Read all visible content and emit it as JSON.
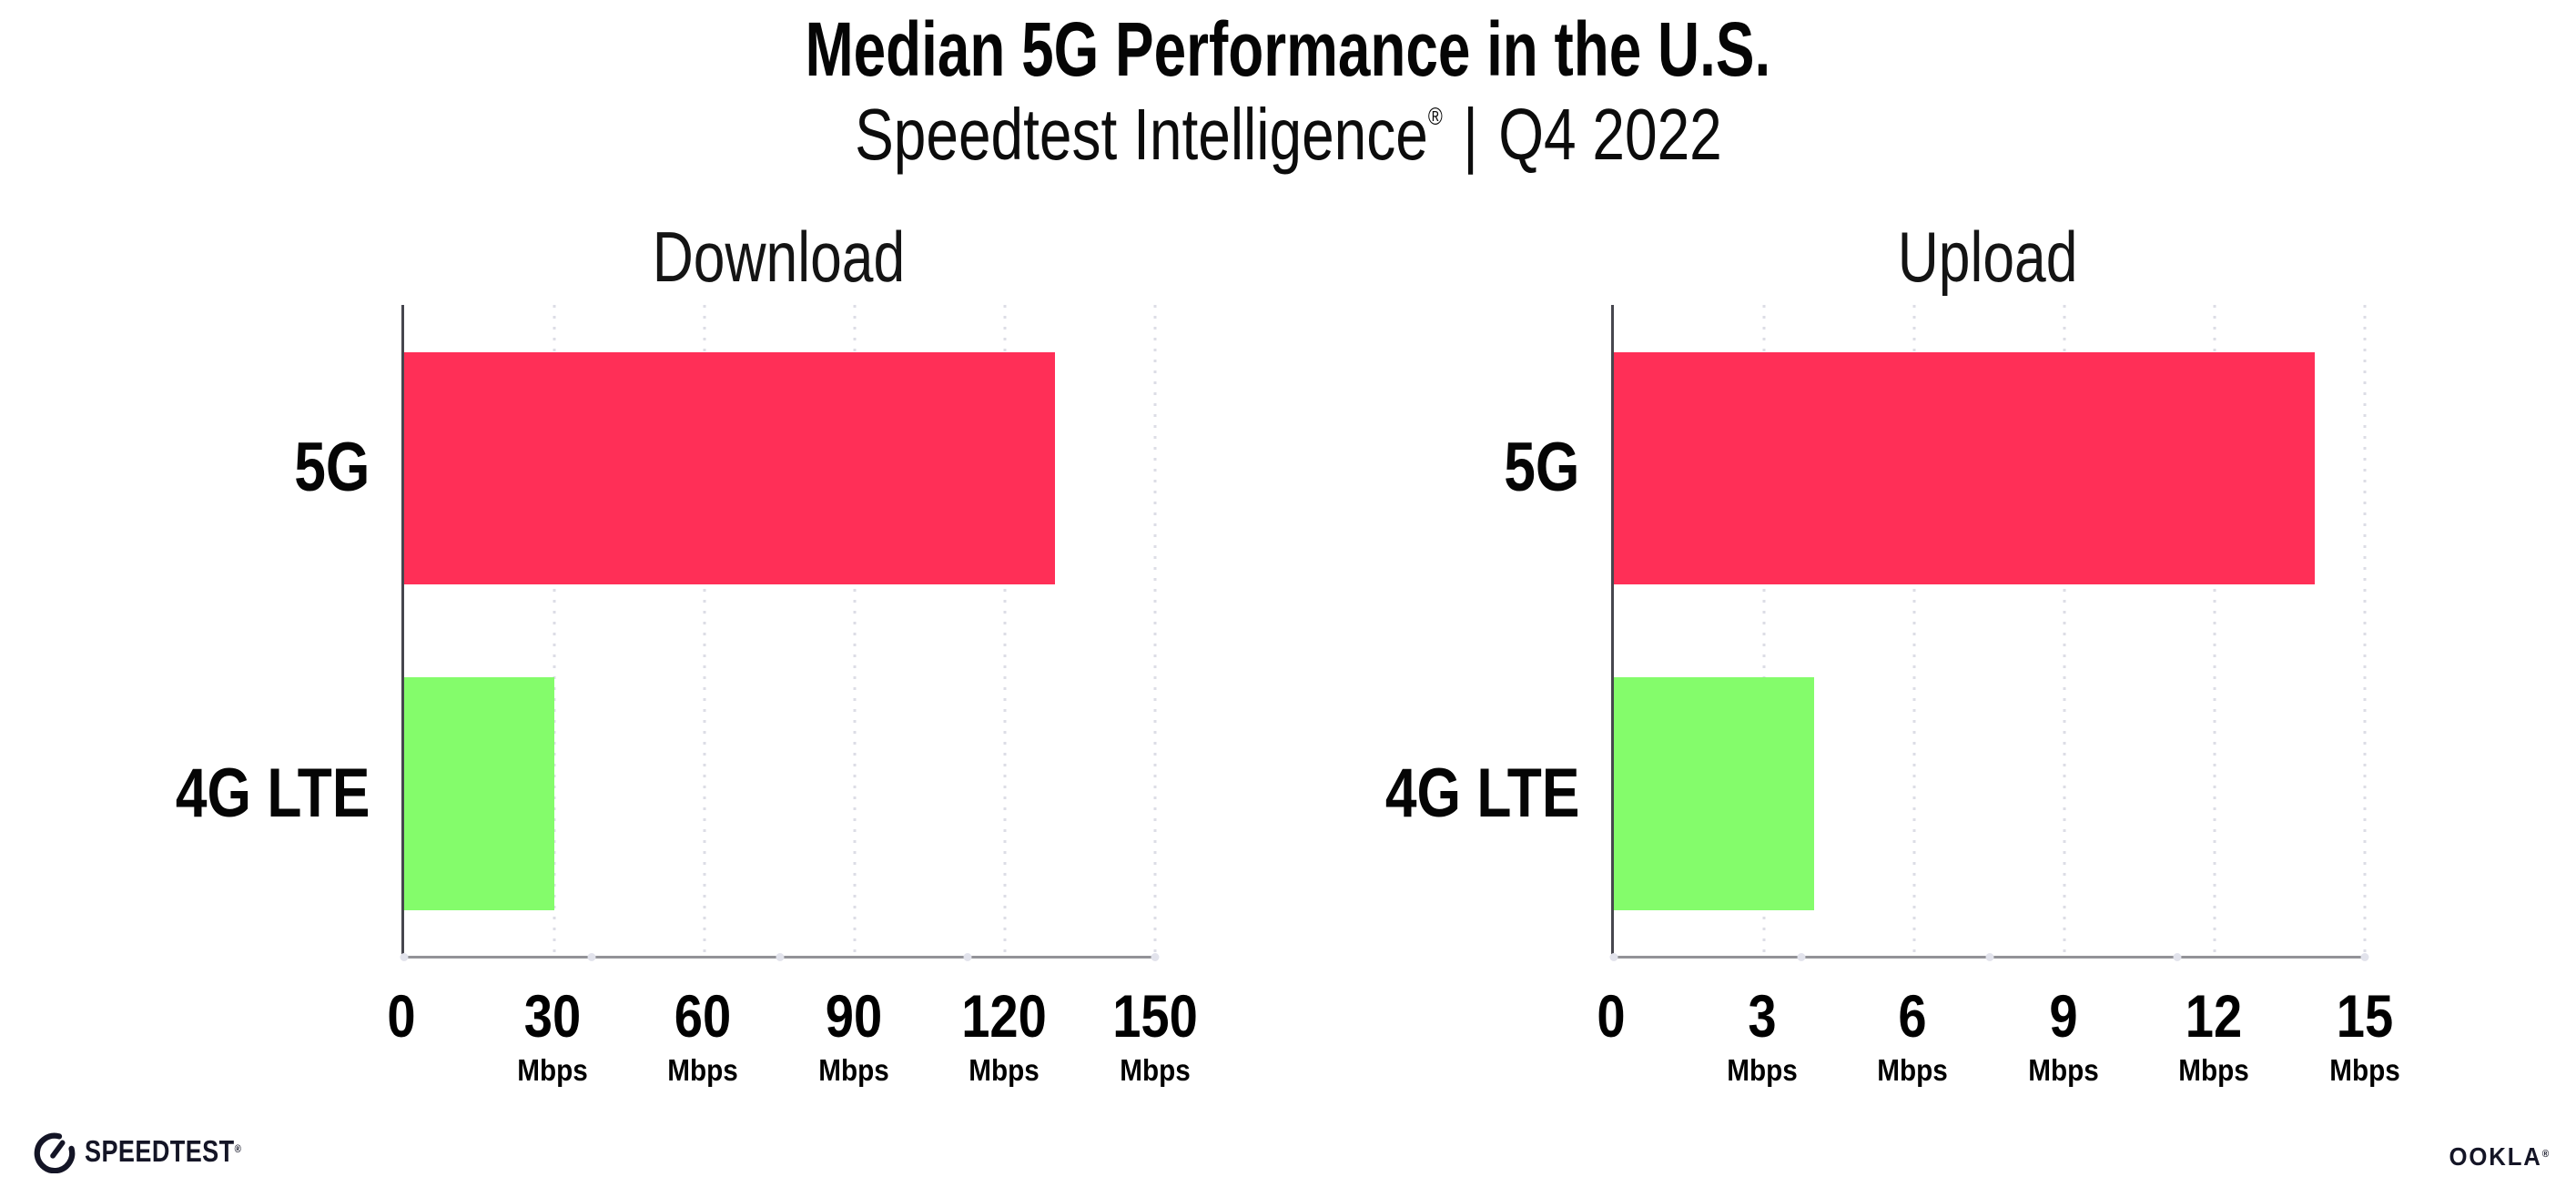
{
  "header": {
    "title": "Median 5G Performance in the U.S.",
    "subtitle_brand": "Speedtest Intelligence",
    "subtitle_registered": "®",
    "subtitle_separator": "|",
    "subtitle_period": "Q4 2022"
  },
  "chart_data": [
    {
      "type": "bar",
      "orientation": "horizontal",
      "title": "Download",
      "categories": [
        "5G",
        "4G LTE"
      ],
      "values": [
        130,
        30
      ],
      "unit": "Mbps",
      "xlim": [
        0,
        150
      ],
      "xticks": [
        0,
        30,
        60,
        90,
        120,
        150
      ],
      "bar_colors": [
        "#FF2F57",
        "#84FC6B"
      ],
      "grid": "dotted-vertical",
      "legend": "none"
    },
    {
      "type": "bar",
      "orientation": "horizontal",
      "title": "Upload",
      "categories": [
        "5G",
        "4G LTE"
      ],
      "values": [
        14,
        4
      ],
      "unit": "Mbps",
      "xlim": [
        0,
        15
      ],
      "xticks": [
        0,
        3,
        6,
        9,
        12,
        15
      ],
      "bar_colors": [
        "#FF2F57",
        "#84FC6B"
      ],
      "grid": "dotted-vertical",
      "legend": "none"
    }
  ],
  "footer": {
    "speedtest_label": "SPEEDTEST",
    "speedtest_mark": "®",
    "ookla_label": "OOKLA",
    "ookla_mark": "®"
  },
  "colors": {
    "bar_5g": "#FF2F57",
    "bar_4g": "#84FC6B",
    "gridline": "#DCDDE6",
    "x_axis": "#939398",
    "y_axis": "#46464E",
    "axis_dot": "#E2E3EC",
    "text": "#000000"
  }
}
